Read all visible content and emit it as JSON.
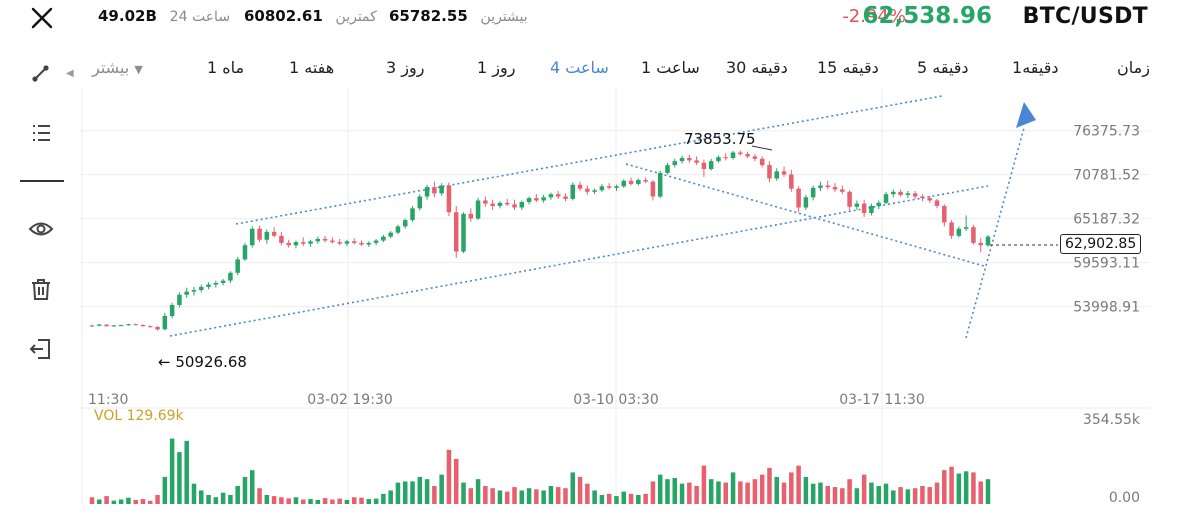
{
  "header": {
    "vol24": "49.02B",
    "vol24_label": "ساعت 24",
    "low_label": "کمترین",
    "low_value": "60802.61",
    "high_label": "بیشترین",
    "high_value": "65782.55",
    "change_pct": "-2.94%",
    "last_price": "62,538.96",
    "pair": "BTC/USDT"
  },
  "timeframes": {
    "more": "بیشتر",
    "items": [
      "1 ماه",
      "1 هفته",
      "3 روز",
      "1 روز",
      "4 ساعت",
      "1 ساعت",
      "30 دقیقه",
      "15 دقیقه",
      "5 دقیقه",
      "1دقیقه",
      "زمان"
    ],
    "active_index": 4
  },
  "chart_data": {
    "type": "candlestick",
    "y_ticks": [
      "76375.73",
      "70781.52",
      "65187.32",
      "59593.11",
      "53998.91"
    ],
    "x_ticks": [
      "11:30",
      "03-02 19:30",
      "03-10 03:30",
      "03-17 11:30"
    ],
    "ylim": [
      50000,
      78500
    ],
    "current_price_label": "62,902.85",
    "high_annotation": "73853.75",
    "low_annotation": "50926.68",
    "vol_label": "VOL 129.69k",
    "vol_ticks": [
      "354.55k",
      "0.00"
    ],
    "vol_max": 354550,
    "candles": [
      [
        51600,
        51700,
        51400,
        51550
      ],
      [
        51550,
        51800,
        51500,
        51700
      ],
      [
        51700,
        51750,
        51450,
        51500
      ],
      [
        51500,
        51650,
        51400,
        51600
      ],
      [
        51600,
        51700,
        51500,
        51650
      ],
      [
        51650,
        51800,
        51550,
        51750
      ],
      [
        51750,
        51850,
        51600,
        51650
      ],
      [
        51650,
        51750,
        51450,
        51500
      ],
      [
        51500,
        51600,
        51300,
        51400
      ],
      [
        51400,
        51500,
        50926,
        51100
      ],
      [
        51100,
        53200,
        51000,
        52800
      ],
      [
        52800,
        54500,
        52500,
        54200
      ],
      [
        54200,
        55800,
        53900,
        55500
      ],
      [
        55500,
        56400,
        55100,
        55900
      ],
      [
        55900,
        56500,
        55400,
        56100
      ],
      [
        56100,
        56800,
        55800,
        56500
      ],
      [
        56500,
        57100,
        56200,
        56800
      ],
      [
        56800,
        57300,
        56400,
        57000
      ],
      [
        57000,
        57500,
        56700,
        57300
      ],
      [
        57300,
        58500,
        57000,
        58300
      ],
      [
        58300,
        60300,
        58000,
        60000
      ],
      [
        60000,
        62100,
        59800,
        61800
      ],
      [
        61800,
        64200,
        61500,
        63900
      ],
      [
        63900,
        64300,
        62200,
        62500
      ],
      [
        62500,
        63800,
        62000,
        63500
      ],
      [
        63500,
        64100,
        62800,
        63000
      ],
      [
        63000,
        63500,
        61800,
        62100
      ],
      [
        62100,
        62500,
        61500,
        61800
      ],
      [
        61800,
        62400,
        61400,
        62200
      ],
      [
        62200,
        62800,
        61700,
        62000
      ],
      [
        62000,
        62500,
        61600,
        62300
      ],
      [
        62300,
        62900,
        62000,
        62600
      ],
      [
        62600,
        63000,
        62200,
        62400
      ],
      [
        62400,
        62800,
        62000,
        62200
      ],
      [
        62200,
        62600,
        61800,
        62000
      ],
      [
        62000,
        62500,
        61700,
        62300
      ],
      [
        62300,
        62700,
        61900,
        62100
      ],
      [
        62100,
        62400,
        61700,
        61900
      ],
      [
        61900,
        62300,
        61600,
        62100
      ],
      [
        62100,
        62600,
        61800,
        62400
      ],
      [
        62400,
        63100,
        62200,
        62900
      ],
      [
        62900,
        63600,
        62700,
        63400
      ],
      [
        63400,
        64400,
        63200,
        64200
      ],
      [
        64200,
        65200,
        63900,
        65000
      ],
      [
        65000,
        66800,
        64800,
        66500
      ],
      [
        66500,
        68300,
        66200,
        68000
      ],
      [
        68000,
        69500,
        67600,
        69200
      ],
      [
        69200,
        69900,
        67900,
        68400
      ],
      [
        68400,
        69700,
        68100,
        69400
      ],
      [
        69400,
        69800,
        65500,
        66000
      ],
      [
        66000,
        66800,
        60200,
        61000
      ],
      [
        61000,
        66000,
        60800,
        65800
      ],
      [
        65800,
        66500,
        64800,
        65200
      ],
      [
        65200,
        67800,
        65000,
        67500
      ],
      [
        67500,
        68000,
        66700,
        67100
      ],
      [
        67100,
        67600,
        66300,
        66800
      ],
      [
        66800,
        67400,
        66500,
        67200
      ],
      [
        67200,
        67700,
        66800,
        67000
      ],
      [
        67000,
        67600,
        66300,
        66600
      ],
      [
        66600,
        67500,
        66300,
        67300
      ],
      [
        67300,
        68000,
        67000,
        67800
      ],
      [
        67800,
        68300,
        67300,
        67500
      ],
      [
        67500,
        68200,
        67200,
        67900
      ],
      [
        67900,
        68500,
        67600,
        68300
      ],
      [
        68300,
        68700,
        67700,
        68000
      ],
      [
        68000,
        68400,
        67400,
        67700
      ],
      [
        67700,
        69800,
        67500,
        69500
      ],
      [
        69500,
        69900,
        68700,
        69000
      ],
      [
        69000,
        69400,
        68200,
        68600
      ],
      [
        68600,
        69000,
        68300,
        68800
      ],
      [
        68800,
        69600,
        68600,
        69300
      ],
      [
        69300,
        69700,
        68900,
        69100
      ],
      [
        69100,
        69500,
        68700,
        69300
      ],
      [
        69300,
        70200,
        69100,
        70000
      ],
      [
        70000,
        70400,
        69400,
        69600
      ],
      [
        69600,
        70300,
        69400,
        70100
      ],
      [
        70100,
        70400,
        69700,
        69900
      ],
      [
        69900,
        70100,
        67500,
        68000
      ],
      [
        68000,
        71300,
        67800,
        71000
      ],
      [
        71000,
        72300,
        70800,
        72000
      ],
      [
        72000,
        72800,
        71700,
        72500
      ],
      [
        72500,
        73200,
        72200,
        72900
      ],
      [
        72900,
        73300,
        72300,
        72600
      ],
      [
        72600,
        73100,
        72000,
        72300
      ],
      [
        72300,
        72700,
        70500,
        71500
      ],
      [
        71500,
        72800,
        71300,
        72500
      ],
      [
        72500,
        73200,
        72300,
        73000
      ],
      [
        73000,
        73500,
        72600,
        72900
      ],
      [
        72900,
        73800,
        72700,
        73600
      ],
      [
        73600,
        73853,
        73200,
        73400
      ],
      [
        73400,
        73700,
        72900,
        73100
      ],
      [
        73100,
        73400,
        72500,
        72800
      ],
      [
        72800,
        73100,
        71700,
        72000
      ],
      [
        72000,
        72500,
        69800,
        70300
      ],
      [
        70300,
        71600,
        70000,
        71200
      ],
      [
        71200,
        71800,
        70500,
        70800
      ],
      [
        70800,
        71400,
        68600,
        69000
      ],
      [
        69000,
        69300,
        66000,
        66600
      ],
      [
        66600,
        68200,
        66300,
        67900
      ],
      [
        67900,
        69400,
        67500,
        69100
      ],
      [
        69100,
        69900,
        68700,
        69400
      ],
      [
        69400,
        70000,
        68900,
        69200
      ],
      [
        69200,
        69700,
        68600,
        68900
      ],
      [
        68900,
        69400,
        68300,
        68600
      ],
      [
        68600,
        68800,
        66200,
        66700
      ],
      [
        66700,
        67500,
        66300,
        67100
      ],
      [
        67100,
        67600,
        65400,
        65900
      ],
      [
        65900,
        67100,
        65600,
        66800
      ],
      [
        66800,
        67500,
        66400,
        67200
      ],
      [
        67200,
        68600,
        67000,
        68300
      ],
      [
        68300,
        68900,
        67900,
        68600
      ],
      [
        68600,
        68900,
        68000,
        68200
      ],
      [
        68200,
        68700,
        67800,
        68400
      ],
      [
        68400,
        68700,
        67700,
        68000
      ],
      [
        68000,
        68300,
        67400,
        67800
      ],
      [
        67800,
        68100,
        67200,
        67500
      ],
      [
        67500,
        67700,
        66500,
        66800
      ],
      [
        66800,
        67000,
        64200,
        64700
      ],
      [
        64700,
        65000,
        62600,
        63000
      ],
      [
        63000,
        64200,
        62800,
        63900
      ],
      [
        63900,
        65600,
        63600,
        64100
      ],
      [
        64100,
        64400,
        61900,
        62100
      ],
      [
        62100,
        62700,
        60900,
        61800
      ],
      [
        61800,
        63100,
        61600,
        62900
      ]
    ],
    "volumes": [
      30000,
      20000,
      35000,
      15000,
      20000,
      28000,
      18000,
      22000,
      14000,
      40000,
      120000,
      290000,
      230000,
      280000,
      90000,
      60000,
      40000,
      30000,
      50000,
      40000,
      80000,
      120000,
      150000,
      70000,
      40000,
      35000,
      30000,
      25000,
      30000,
      20000,
      22000,
      18000,
      26000,
      20000,
      24000,
      18000,
      30000,
      28000,
      22000,
      24000,
      45000,
      60000,
      95000,
      100000,
      100000,
      120000,
      110000,
      80000,
      130000,
      240000,
      200000,
      95000,
      70000,
      110000,
      80000,
      70000,
      60000,
      55000,
      75000,
      60000,
      70000,
      65000,
      60000,
      80000,
      75000,
      70000,
      140000,
      120000,
      90000,
      60000,
      40000,
      45000,
      35000,
      55000,
      45000,
      40000,
      45000,
      100000,
      130000,
      110000,
      115000,
      90000,
      95000,
      80000,
      170000,
      110000,
      100000,
      95000,
      140000,
      100000,
      95000,
      110000,
      130000,
      160000,
      120000,
      95000,
      140000,
      170000,
      120000,
      90000,
      95000,
      80000,
      75000,
      70000,
      110000,
      70000,
      130000,
      95000,
      80000,
      90000,
      60000,
      75000,
      65000,
      70000,
      80000,
      75000,
      95000,
      150000,
      165000,
      135000,
      145000,
      140000,
      100000,
      110000
    ]
  },
  "colors": {
    "up": "#27a567",
    "down": "#e8606e",
    "trend": "#4a86d6",
    "grid": "#eeeeee"
  }
}
